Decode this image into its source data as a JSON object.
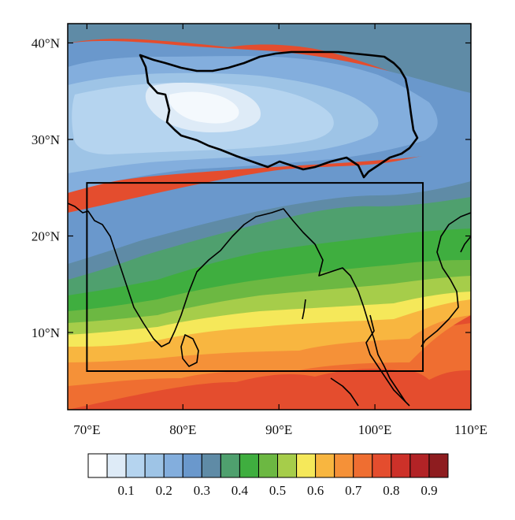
{
  "map": {
    "x_axis": {
      "ticks": [
        {
          "value": 70,
          "label": "70°E"
        },
        {
          "value": 80,
          "label": "80°E"
        },
        {
          "value": 90,
          "label": "90°E"
        },
        {
          "value": 100,
          "label": "100°E"
        },
        {
          "value": 110,
          "label": "110°E"
        }
      ],
      "range": [
        68,
        110
      ]
    },
    "y_axis": {
      "ticks": [
        {
          "value": 10,
          "label": "10°N"
        },
        {
          "value": 20,
          "label": "20°N"
        },
        {
          "value": 30,
          "label": "30°N"
        },
        {
          "value": 40,
          "label": "40°N"
        }
      ],
      "range": [
        2,
        42
      ]
    },
    "domain_box": {
      "lon": [
        70,
        105
      ],
      "lat": [
        6,
        25.5
      ]
    }
  },
  "colorbar": {
    "colors": [
      "#ffffff",
      "#deebf7",
      "#b5d4ef",
      "#9ec4e6",
      "#83aedd",
      "#6a98cc",
      "#5f8ba6",
      "#4fa06e",
      "#3fae3f",
      "#6cb842",
      "#a6cd4a",
      "#f5e85a",
      "#f8b640",
      "#f59138",
      "#ef6e31",
      "#e44d2e",
      "#cd3129",
      "#b22326",
      "#8e1c1f"
    ],
    "labels": [
      {
        "value": "0.1",
        "index": 2
      },
      {
        "value": "0.2",
        "index": 4
      },
      {
        "value": "0.3",
        "index": 6
      },
      {
        "value": "0.4",
        "index": 8
      },
      {
        "value": "0.5",
        "index": 10
      },
      {
        "value": "0.6",
        "index": 12
      },
      {
        "value": "0.7",
        "index": 14
      },
      {
        "value": "0.8",
        "index": 16
      },
      {
        "value": "0.9",
        "index": 18
      }
    ]
  }
}
